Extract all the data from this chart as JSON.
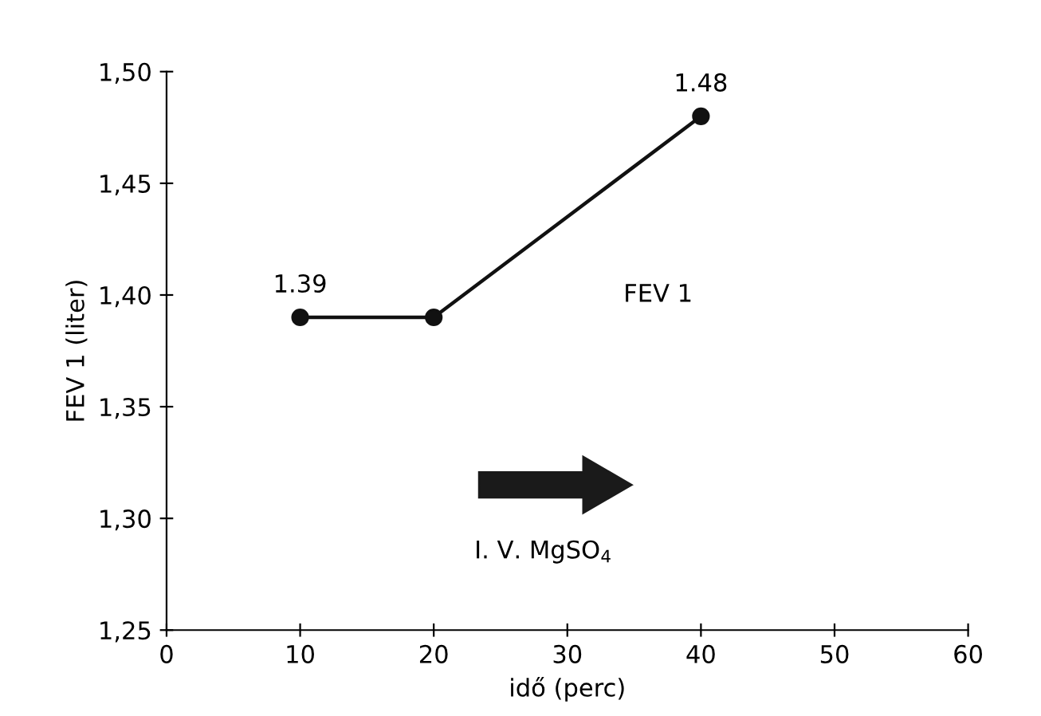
{
  "chart_data": {
    "type": "line",
    "xlabel": "idő (perc)",
    "ylabel": "FEV 1 (liter)",
    "x": [
      10,
      20,
      40
    ],
    "series": [
      {
        "name": "FEV 1",
        "color": "#111111",
        "values": [
          1.39,
          1.39,
          1.48
        ],
        "value_labels": [
          "1.39",
          null,
          "1.48"
        ]
      }
    ],
    "xlim": [
      0,
      60
    ],
    "xticks": [
      0,
      10,
      20,
      30,
      40,
      50,
      60
    ],
    "ylim": [
      1.25,
      1.5
    ],
    "yticks": [
      {
        "value": 1.25,
        "label": "1,25"
      },
      {
        "value": 1.3,
        "label": "1,30"
      },
      {
        "value": 1.35,
        "label": "1,35"
      },
      {
        "value": 1.4,
        "label": "1,40"
      },
      {
        "value": 1.45,
        "label": "1,45"
      },
      {
        "value": 1.5,
        "label": "1,50"
      }
    ],
    "marker": "circle",
    "line_style": "solid",
    "grid": false,
    "legend": false,
    "annotations": [
      "I. V. MgSO$_{4}$"
    ]
  }
}
